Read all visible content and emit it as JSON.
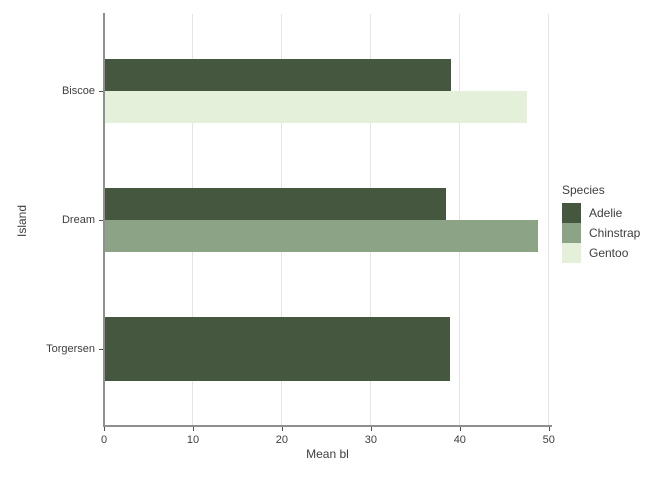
{
  "chart_data": {
    "type": "bar",
    "orientation": "horizontal",
    "title": "",
    "xlabel": "Mean bl",
    "ylabel": "Island",
    "categories": [
      "Biscoe",
      "Dream",
      "Torgersen"
    ],
    "series": [
      {
        "name": "Adelie",
        "color": "#46573f",
        "values": {
          "Biscoe": 38.98,
          "Dream": 38.5,
          "Torgersen": 38.95
        }
      },
      {
        "name": "Chinstrap",
        "color": "#8da385",
        "values": {
          "Biscoe": null,
          "Dream": 48.83,
          "Torgersen": null
        }
      },
      {
        "name": "Gentoo",
        "color": "#e4f0da",
        "values": {
          "Biscoe": 47.5,
          "Dream": null,
          "Torgersen": null
        }
      }
    ],
    "xlim": [
      0,
      50.25
    ],
    "xticks": [
      0,
      10,
      20,
      30,
      40,
      50
    ],
    "grid": "vertical",
    "legend": {
      "title": "Species",
      "position": "right"
    },
    "colors": {
      "background": "#ffffff",
      "gridline": "#e4e4e4",
      "axis_line": "#8f8f8f",
      "text": "#3e3e3e"
    }
  }
}
